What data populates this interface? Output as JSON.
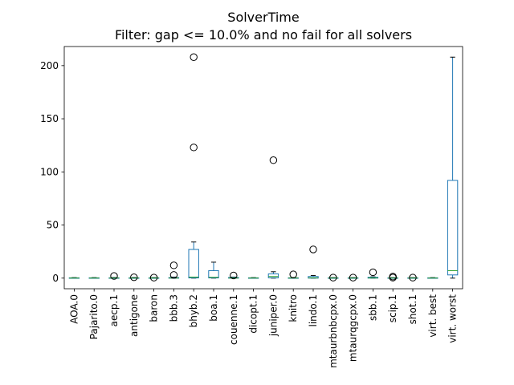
{
  "chart_data": {
    "type": "box",
    "title": "SolverTime",
    "subtitle": "Filter: gap <= 10.0% and no fail for all solvers",
    "xlabel": "",
    "ylabel": "",
    "ylim": [
      -10,
      218
    ],
    "yticks": [
      0,
      50,
      100,
      150,
      200
    ],
    "grid": false,
    "legend": "none",
    "colors": {
      "box": "#1f77b4",
      "median": "#2ca02c",
      "flier": "#000000",
      "axis": "#000000"
    },
    "categories": [
      "AOA.0",
      "Pajarito.0",
      "aecp.1",
      "antigone",
      "baron",
      "bbb.3",
      "bhyb.2",
      "boa.1",
      "couenne.1",
      "dicopt.1",
      "juniper.0",
      "knitro",
      "lindo.1",
      "mtaurbnbcpx.0",
      "mtaurqgcpx.0",
      "sbb.1",
      "scip.1",
      "shot.1",
      "virt. best",
      "virt. worst"
    ],
    "boxes": [
      {
        "label": "AOA.0",
        "whislo": 0,
        "q1": 0,
        "med": 0.1,
        "q3": 0.3,
        "whishi": 0.5,
        "fliers": []
      },
      {
        "label": "Pajarito.0",
        "whislo": 0,
        "q1": 0,
        "med": 0.1,
        "q3": 0.3,
        "whishi": 0.5,
        "fliers": []
      },
      {
        "label": "aecp.1",
        "whislo": 0,
        "q1": 0,
        "med": 0.1,
        "q3": 0.3,
        "whishi": 0.6,
        "fliers": [
          2
        ]
      },
      {
        "label": "antigone",
        "whislo": 0,
        "q1": 0,
        "med": 0.1,
        "q3": 0.3,
        "whishi": 0.6,
        "fliers": [
          0.8
        ]
      },
      {
        "label": "baron",
        "whislo": 0,
        "q1": 0,
        "med": 0.1,
        "q3": 0.3,
        "whishi": 0.5,
        "fliers": [
          0.5
        ]
      },
      {
        "label": "bbb.3",
        "whislo": 0,
        "q1": 0,
        "med": 0.1,
        "q3": 0.5,
        "whishi": 1,
        "fliers": [
          3,
          12
        ]
      },
      {
        "label": "bhyb.2",
        "whislo": 0,
        "q1": 0.2,
        "med": 1,
        "q3": 27,
        "whishi": 34,
        "fliers": [
          123,
          208
        ]
      },
      {
        "label": "boa.1",
        "whislo": 0,
        "q1": 0.2,
        "med": 0.8,
        "q3": 7,
        "whishi": 15,
        "fliers": []
      },
      {
        "label": "couenne.1",
        "whislo": 0,
        "q1": 0,
        "med": 0.1,
        "q3": 0.6,
        "whishi": 1,
        "fliers": [
          2.5
        ]
      },
      {
        "label": "dicopt.1",
        "whislo": 0,
        "q1": 0,
        "med": 0.1,
        "q3": 0.3,
        "whishi": 0.5,
        "fliers": []
      },
      {
        "label": "juniper.0",
        "whislo": 0,
        "q1": 0.3,
        "med": 1.5,
        "q3": 4,
        "whishi": 6,
        "fliers": [
          111
        ]
      },
      {
        "label": "knitro",
        "whislo": 0,
        "q1": 0,
        "med": 0.1,
        "q3": 0.3,
        "whishi": 0.6,
        "fliers": [
          3.5
        ]
      },
      {
        "label": "lindo.1",
        "whislo": 0,
        "q1": 0,
        "med": 0.3,
        "q3": 1.5,
        "whishi": 2.5,
        "fliers": [
          27
        ]
      },
      {
        "label": "mtaurbnbcpx.0",
        "whislo": 0,
        "q1": 0,
        "med": 0.1,
        "q3": 0.3,
        "whishi": 0.5,
        "fliers": [
          0.5
        ]
      },
      {
        "label": "mtaurqgcpx.0",
        "whislo": 0,
        "q1": 0,
        "med": 0.1,
        "q3": 0.3,
        "whishi": 0.5,
        "fliers": [
          0.5
        ]
      },
      {
        "label": "sbb.1",
        "whislo": 0,
        "q1": 0,
        "med": 0.2,
        "q3": 0.8,
        "whishi": 1.2,
        "fliers": [
          5.5
        ]
      },
      {
        "label": "scip.1",
        "whislo": 0,
        "q1": 0,
        "med": 0.1,
        "q3": 0.3,
        "whishi": 0.5,
        "fliers": [
          0.5,
          1.5
        ]
      },
      {
        "label": "shot.1",
        "whislo": 0,
        "q1": 0,
        "med": 0.1,
        "q3": 0.3,
        "whishi": 0.5,
        "fliers": [
          0.5
        ]
      },
      {
        "label": "virt. best",
        "whislo": 0,
        "q1": 0,
        "med": 0.1,
        "q3": 0.3,
        "whishi": 0.5,
        "fliers": []
      },
      {
        "label": "virt. worst",
        "whislo": 0,
        "q1": 3,
        "med": 7,
        "q3": 92,
        "whishi": 208,
        "fliers": []
      }
    ]
  }
}
